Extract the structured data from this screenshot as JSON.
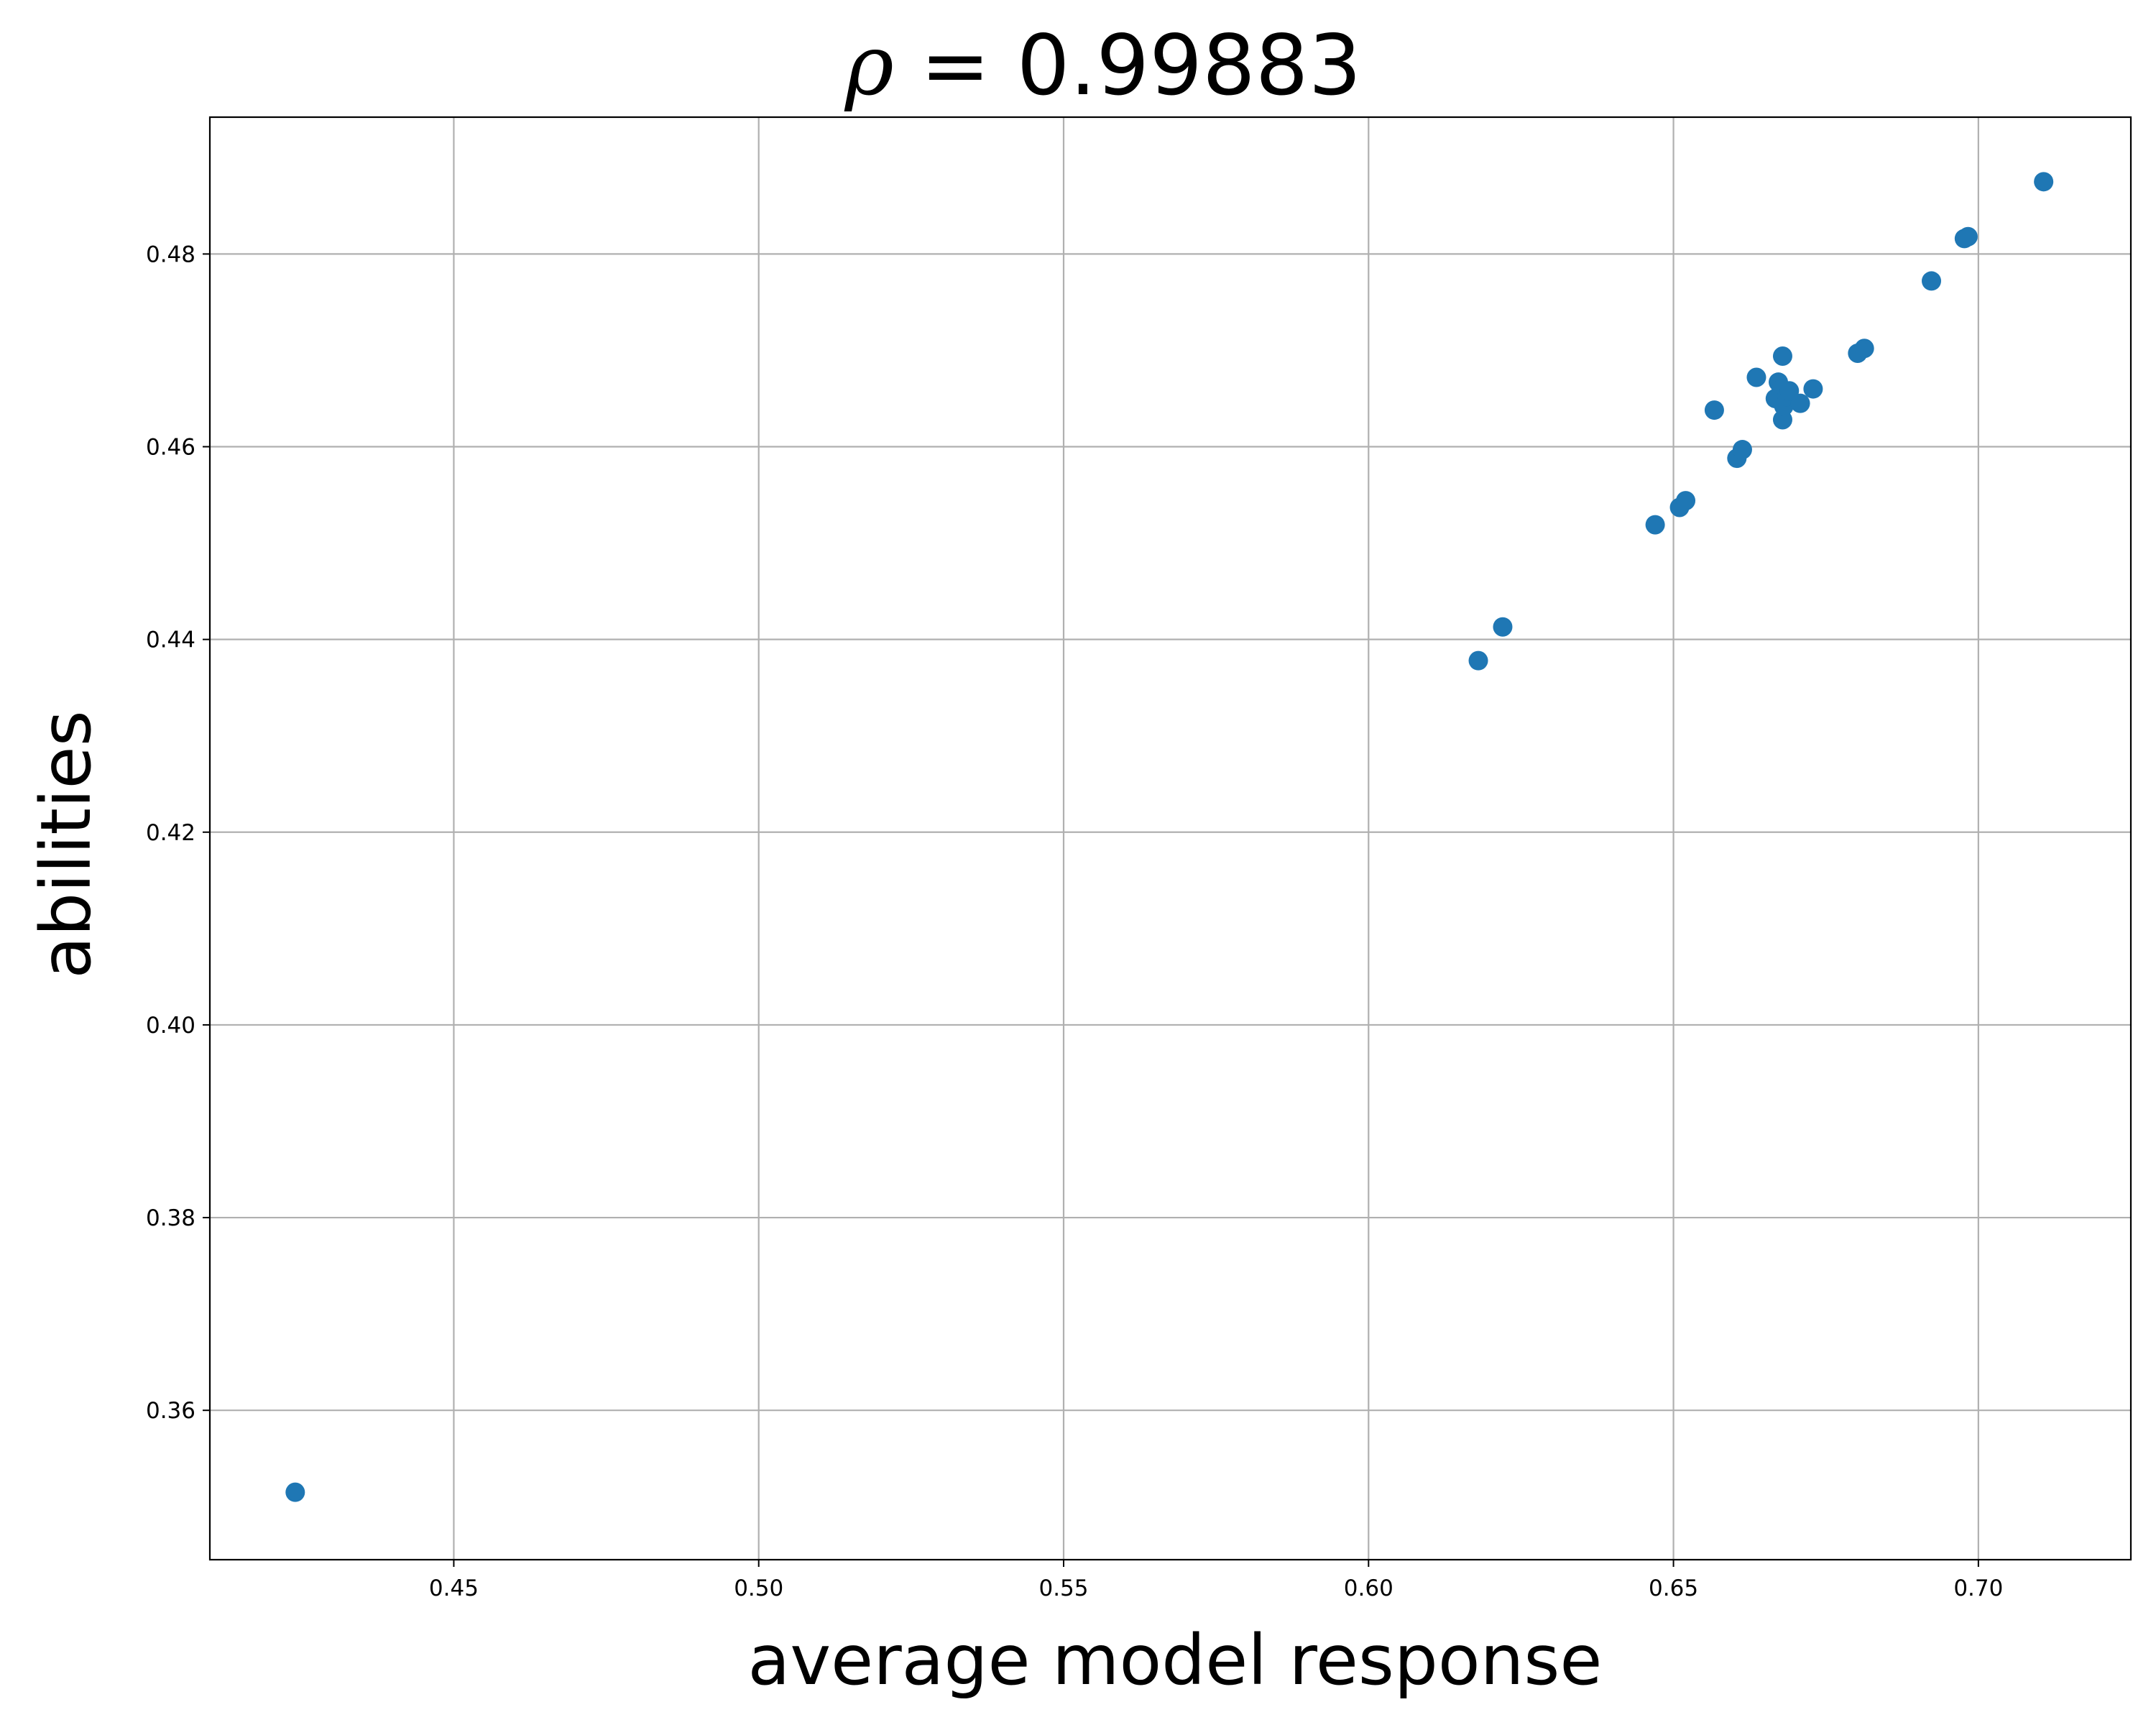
{
  "chart_data": {
    "type": "scatter",
    "title": {
      "symbol": "ρ",
      "text": "=  0.99883"
    },
    "xlabel": "average model response",
    "ylabel": "abilities",
    "xlim": [
      0.41,
      0.725
    ],
    "ylim": [
      0.3445,
      0.4942
    ],
    "xticks": [
      0.45,
      0.5,
      0.55,
      0.6,
      0.65,
      0.7
    ],
    "xtick_labels": [
      "0.45",
      "0.50",
      "0.55",
      "0.60",
      "0.65",
      "0.70"
    ],
    "yticks": [
      0.36,
      0.38,
      0.4,
      0.42,
      0.44,
      0.46,
      0.48
    ],
    "ytick_labels": [
      "0.36",
      "0.38",
      "0.40",
      "0.42",
      "0.44",
      "0.46",
      "0.48"
    ],
    "grid": true,
    "marker_color": "#1f77b4",
    "points": [
      {
        "x": 0.424,
        "y": 0.3515
      },
      {
        "x": 0.618,
        "y": 0.4378
      },
      {
        "x": 0.622,
        "y": 0.4413
      },
      {
        "x": 0.647,
        "y": 0.4519
      },
      {
        "x": 0.651,
        "y": 0.4537
      },
      {
        "x": 0.652,
        "y": 0.4544
      },
      {
        "x": 0.6567,
        "y": 0.4638
      },
      {
        "x": 0.6604,
        "y": 0.4588
      },
      {
        "x": 0.6613,
        "y": 0.4597
      },
      {
        "x": 0.6636,
        "y": 0.4672
      },
      {
        "x": 0.6667,
        "y": 0.465
      },
      {
        "x": 0.6672,
        "y": 0.4667
      },
      {
        "x": 0.6677,
        "y": 0.466
      },
      {
        "x": 0.6679,
        "y": 0.4694
      },
      {
        "x": 0.6679,
        "y": 0.4628
      },
      {
        "x": 0.6681,
        "y": 0.4642
      },
      {
        "x": 0.6686,
        "y": 0.4652
      },
      {
        "x": 0.669,
        "y": 0.4658
      },
      {
        "x": 0.6708,
        "y": 0.4645
      },
      {
        "x": 0.6729,
        "y": 0.466
      },
      {
        "x": 0.6802,
        "y": 0.4697
      },
      {
        "x": 0.6813,
        "y": 0.4702
      },
      {
        "x": 0.6923,
        "y": 0.4772
      },
      {
        "x": 0.6977,
        "y": 0.4816
      },
      {
        "x": 0.6983,
        "y": 0.4818
      },
      {
        "x": 0.7107,
        "y": 0.4875
      }
    ]
  }
}
